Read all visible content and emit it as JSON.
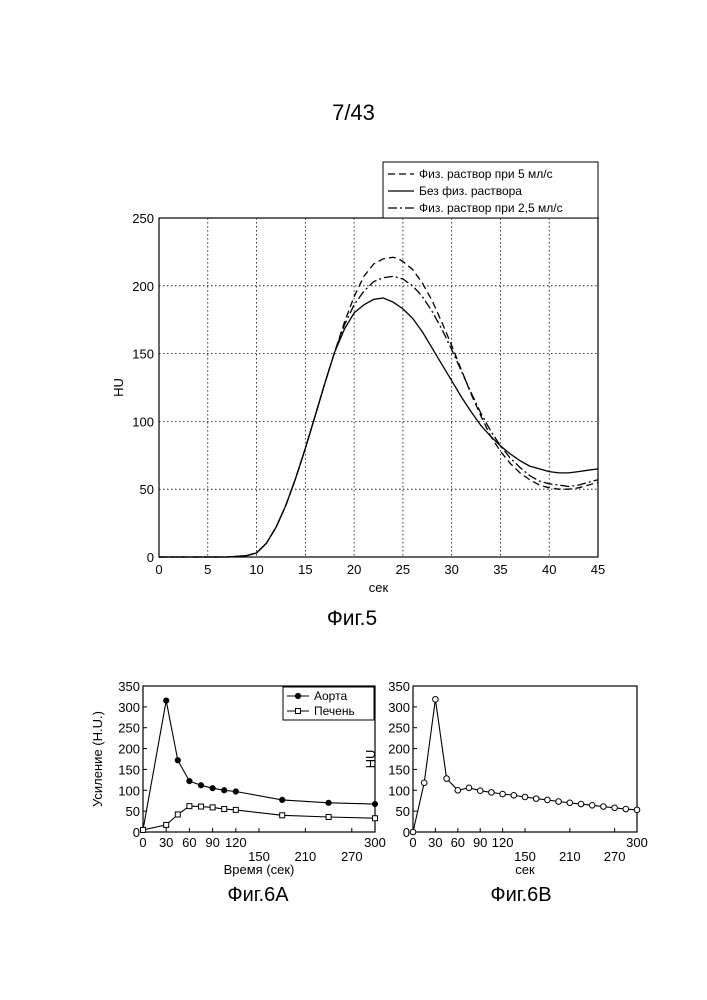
{
  "page": {
    "number": "7/43"
  },
  "chart_data": [
    {
      "id": "fig5",
      "type": "line",
      "caption": "Фиг.5",
      "xlabel": "сек",
      "ylabel": "HU",
      "xlim": [
        0,
        45
      ],
      "ylim": [
        0,
        250
      ],
      "xticks": [
        0,
        5,
        10,
        15,
        20,
        25,
        30,
        35,
        40,
        45
      ],
      "yticks": [
        0,
        50,
        100,
        150,
        200,
        250
      ],
      "grid": true,
      "legend_position": "top-right",
      "series": [
        {
          "name": "Физ. раствор при 5 мл/с",
          "style": "dashed",
          "x": [
            0,
            7,
            9,
            10,
            11,
            12,
            13,
            14,
            15,
            16,
            17,
            18,
            19,
            20,
            21,
            22,
            23,
            24,
            24.5,
            25,
            26,
            27,
            28,
            29,
            30,
            31,
            32,
            33,
            34,
            35,
            36,
            37,
            38,
            39,
            40,
            41,
            42,
            43,
            44,
            45
          ],
          "y": [
            0,
            0,
            1,
            3,
            10,
            22,
            38,
            58,
            80,
            104,
            128,
            151,
            173,
            192,
            207,
            216,
            220,
            221,
            220,
            218,
            212,
            202,
            189,
            173,
            156,
            138,
            120,
            104,
            89,
            78,
            69,
            62,
            57,
            53,
            51,
            50,
            50,
            51,
            53,
            55
          ]
        },
        {
          "name": "Без физ. раствора",
          "style": "solid",
          "x": [
            0,
            7,
            9,
            10,
            11,
            12,
            13,
            14,
            15,
            16,
            17,
            18,
            19,
            20,
            21,
            22,
            23,
            24,
            25,
            26,
            27,
            28,
            29,
            30,
            31,
            32,
            33,
            34,
            35,
            36,
            37,
            38,
            39,
            40,
            41,
            42,
            43,
            44,
            45
          ],
          "y": [
            0,
            0,
            1,
            3,
            10,
            22,
            38,
            58,
            80,
            104,
            128,
            151,
            168,
            180,
            186,
            190,
            191,
            188,
            183,
            176,
            166,
            154,
            142,
            130,
            118,
            107,
            97,
            89,
            82,
            76,
            71,
            67,
            65,
            63,
            62,
            62,
            63,
            64,
            65
          ]
        },
        {
          "name": "Физ. раствор при 2,5 мл/с",
          "style": "dashdot",
          "x": [
            0,
            7,
            9,
            10,
            11,
            12,
            13,
            14,
            15,
            16,
            17,
            18,
            19,
            20,
            21,
            22,
            23,
            24,
            24.5,
            25,
            26,
            27,
            28,
            29,
            30,
            31,
            32,
            33,
            34,
            35,
            36,
            37,
            38,
            39,
            40,
            41,
            42,
            43,
            44,
            45
          ],
          "y": [
            0,
            0,
            1,
            3,
            10,
            22,
            38,
            58,
            80,
            104,
            128,
            151,
            171,
            186,
            196,
            203,
            206,
            207,
            206,
            205,
            200,
            192,
            181,
            168,
            153,
            137,
            121,
            106,
            93,
            82,
            73,
            66,
            60,
            56,
            54,
            53,
            52,
            53,
            55,
            57
          ]
        }
      ]
    },
    {
      "id": "fig6a",
      "type": "line",
      "caption": "Фиг.6А",
      "xlabel": "Время (сек)",
      "ylabel": "Усиление (H.U.)",
      "xlim": [
        0,
        300
      ],
      "ylim": [
        0,
        350
      ],
      "xticks_top": [
        "0",
        "30",
        "60",
        "90",
        "120",
        "300"
      ],
      "xticks_bottom": [
        "150",
        "210",
        "270"
      ],
      "yticks": [
        0,
        50,
        100,
        150,
        200,
        250,
        300,
        350
      ],
      "grid": false,
      "legend_position": "top-right",
      "series": [
        {
          "name": "Аорта",
          "marker": "filled-circle",
          "x": [
            0,
            30,
            45,
            60,
            75,
            90,
            105,
            120,
            180,
            240,
            300
          ],
          "y": [
            5,
            315,
            172,
            122,
            112,
            105,
            100,
            97,
            77,
            70,
            67
          ]
        },
        {
          "name": "Печень",
          "marker": "open-square",
          "x": [
            0,
            30,
            45,
            60,
            75,
            90,
            105,
            120,
            180,
            240,
            300
          ],
          "y": [
            5,
            17,
            42,
            62,
            61,
            59,
            55,
            53,
            40,
            36,
            33
          ]
        }
      ]
    },
    {
      "id": "fig6b",
      "type": "line",
      "caption": "Фиг.6В",
      "xlabel": "сек",
      "ylabel": "HU",
      "xlim": [
        0,
        300
      ],
      "ylim": [
        0,
        350
      ],
      "xticks_top": [
        "0",
        "30",
        "60",
        "90",
        "120",
        "300"
      ],
      "xticks_bottom": [
        "150",
        "210",
        "270"
      ],
      "yticks": [
        0,
        50,
        100,
        150,
        200,
        250,
        300,
        350
      ],
      "grid": false,
      "series": [
        {
          "name": "",
          "marker": "open-circle",
          "x": [
            0,
            15,
            30,
            45,
            60,
            75,
            90,
            105,
            120,
            135,
            150,
            165,
            180,
            195,
            210,
            225,
            240,
            255,
            270,
            285,
            300
          ],
          "y": [
            0,
            118,
            318,
            128,
            100,
            106,
            99,
            95,
            91,
            88,
            84,
            80,
            77,
            73,
            70,
            67,
            64,
            61,
            58,
            55,
            53
          ]
        }
      ]
    }
  ]
}
